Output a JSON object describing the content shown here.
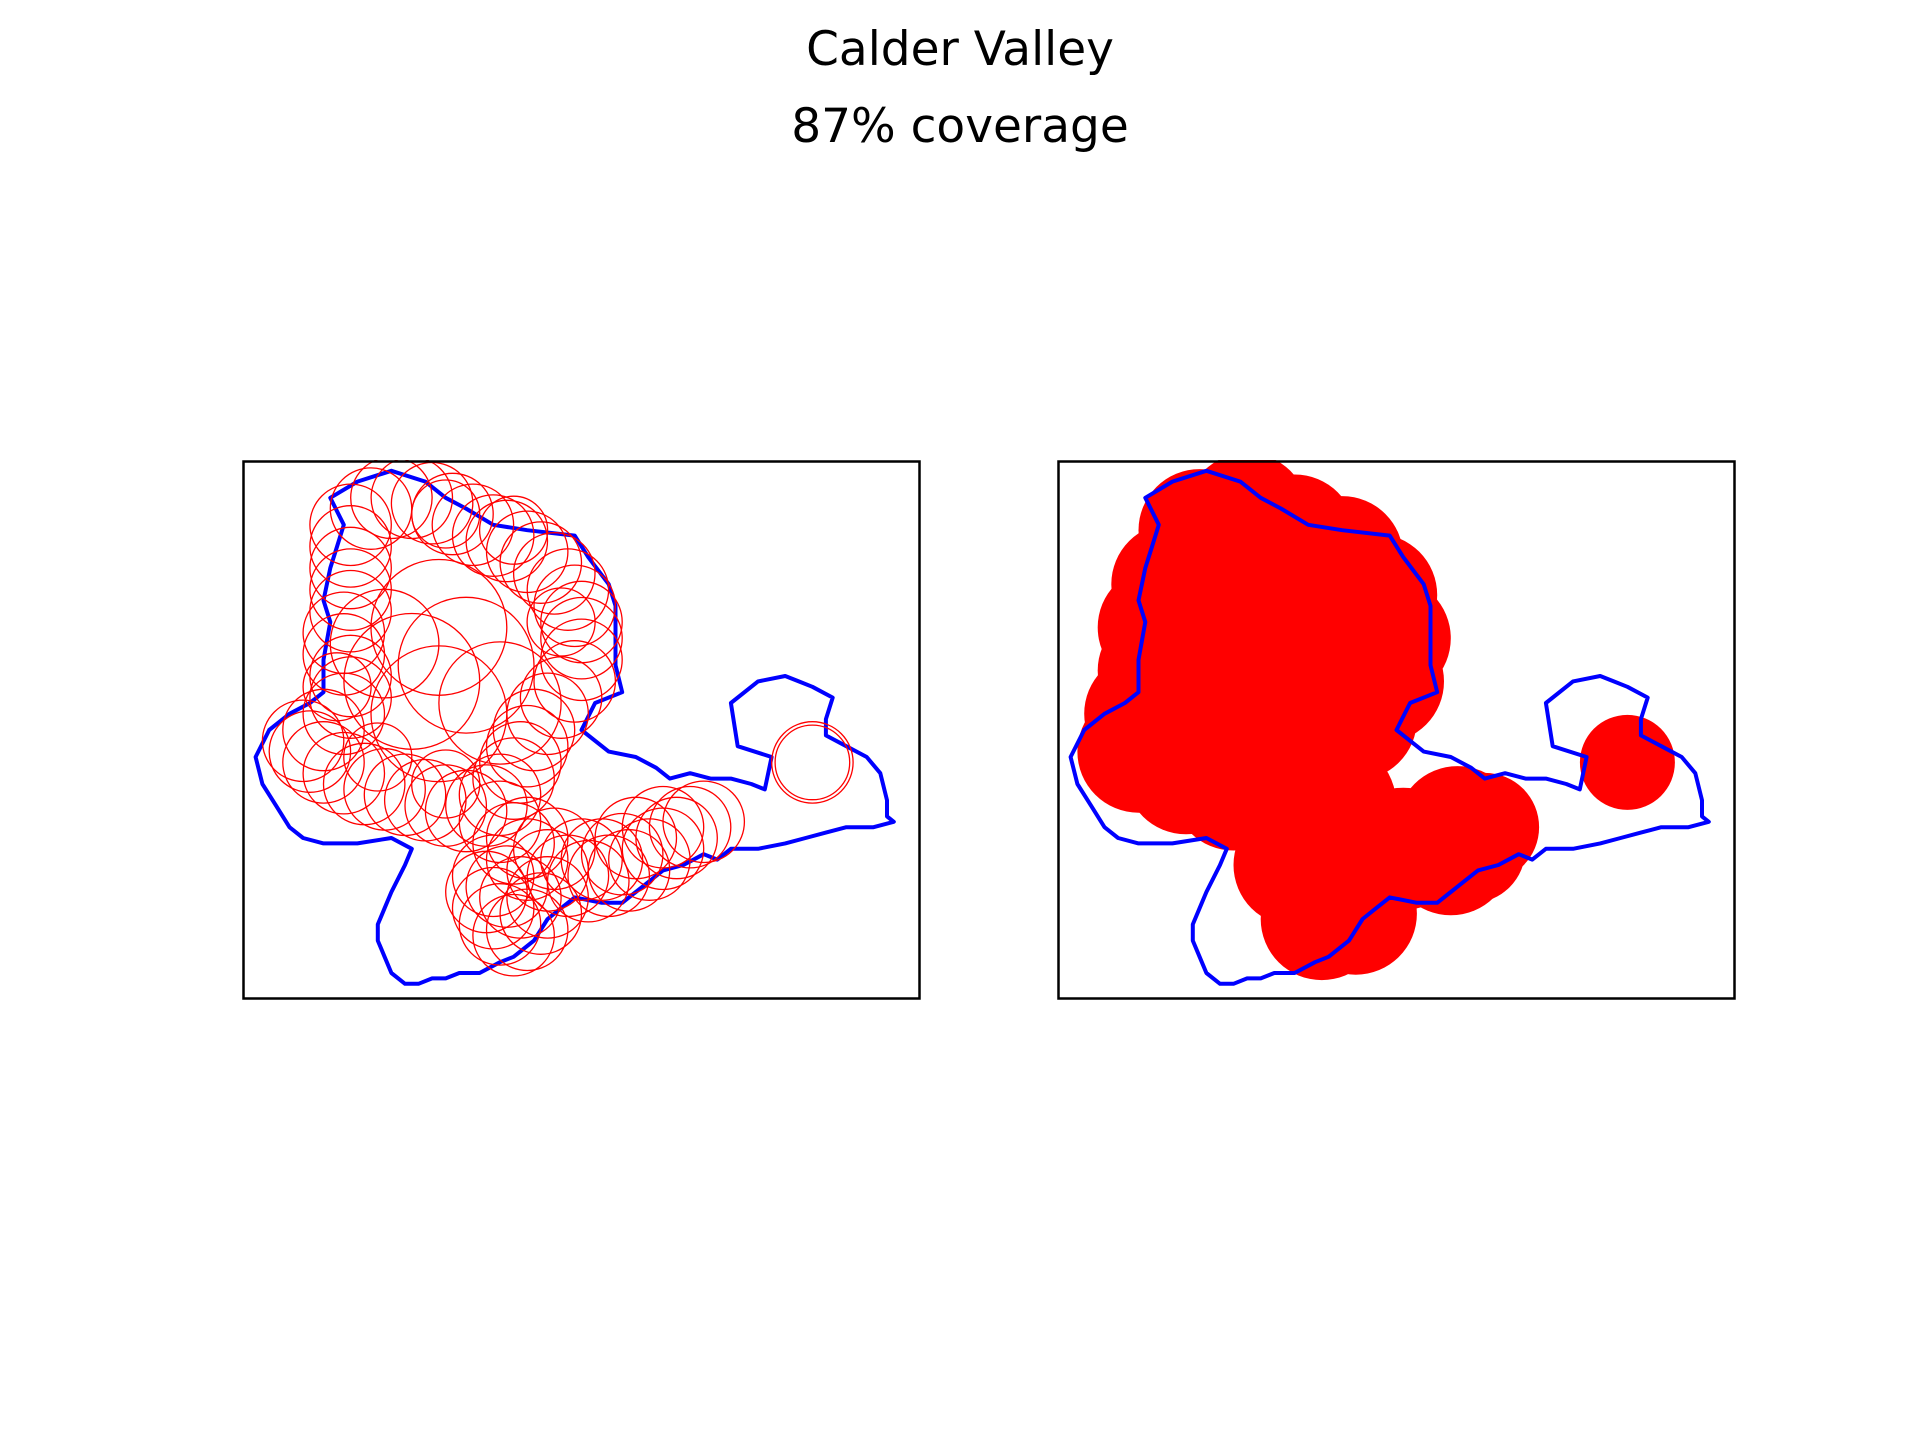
{
  "title": "Calder Valley",
  "subtitle": "87% coverage",
  "colors": {
    "boundary": "#0000ff",
    "circles": "#ff0000",
    "frame": "#000000",
    "background": "#ffffff"
  },
  "chart_data": [
    {
      "type": "scatter",
      "style": "circle outlines",
      "title": "",
      "xlabel": "",
      "ylabel": "",
      "xlim": [
        0,
        100
      ],
      "ylim": [
        0,
        100
      ],
      "grid": false,
      "boundary": [
        [
          13,
          93
        ],
        [
          17,
          96
        ],
        [
          22,
          98
        ],
        [
          27,
          96
        ],
        [
          30,
          93
        ],
        [
          33,
          91
        ],
        [
          37,
          88
        ],
        [
          42,
          87
        ],
        [
          49,
          86
        ],
        [
          51,
          82
        ],
        [
          54,
          77
        ],
        [
          55,
          73
        ],
        [
          55,
          62
        ],
        [
          56,
          57
        ],
        [
          52,
          55
        ],
        [
          50,
          50
        ],
        [
          54,
          46
        ],
        [
          58,
          45
        ],
        [
          61,
          43
        ],
        [
          63,
          41
        ],
        [
          66,
          42
        ],
        [
          69,
          41
        ],
        [
          72,
          41
        ],
        [
          75,
          40
        ],
        [
          77,
          39
        ],
        [
          78,
          45
        ],
        [
          73,
          47
        ],
        [
          72,
          55
        ],
        [
          76,
          59
        ],
        [
          80,
          60
        ],
        [
          82,
          59
        ],
        [
          84,
          58
        ],
        [
          87,
          56
        ],
        [
          86,
          52
        ],
        [
          86,
          49
        ],
        [
          89,
          47
        ],
        [
          92,
          45
        ],
        [
          94,
          42
        ],
        [
          95,
          37
        ],
        [
          95,
          34
        ],
        [
          96,
          33
        ],
        [
          93,
          32
        ],
        [
          89,
          32
        ],
        [
          86,
          31
        ],
        [
          83,
          30
        ],
        [
          80,
          29
        ],
        [
          76,
          28
        ],
        [
          72,
          28
        ],
        [
          70,
          26
        ],
        [
          68,
          27
        ],
        [
          65,
          25
        ],
        [
          62,
          24
        ],
        [
          60,
          22
        ],
        [
          58,
          20
        ],
        [
          56,
          18
        ],
        [
          53,
          18
        ],
        [
          49,
          19
        ],
        [
          47,
          17
        ],
        [
          45,
          15
        ],
        [
          43,
          11
        ],
        [
          40,
          8
        ],
        [
          38,
          7
        ],
        [
          35,
          5
        ],
        [
          32,
          5
        ],
        [
          30,
          4
        ],
        [
          28,
          4
        ],
        [
          26,
          3
        ],
        [
          24,
          3
        ],
        [
          22,
          5
        ],
        [
          21,
          8
        ],
        [
          20,
          11
        ],
        [
          20,
          14
        ],
        [
          21,
          17
        ],
        [
          22,
          20
        ],
        [
          24,
          25
        ],
        [
          25,
          28
        ],
        [
          22,
          30
        ],
        [
          17,
          29
        ],
        [
          12,
          29
        ],
        [
          9,
          30
        ],
        [
          7,
          32
        ],
        [
          5,
          36
        ],
        [
          3,
          40
        ],
        [
          2,
          45
        ],
        [
          4,
          50
        ],
        [
          7,
          53
        ],
        [
          10,
          55
        ],
        [
          12,
          57
        ],
        [
          12,
          63
        ],
        [
          13,
          70
        ],
        [
          12,
          74
        ],
        [
          13,
          80
        ],
        [
          14,
          84
        ],
        [
          15,
          88
        ],
        [
          13,
          93
        ]
      ],
      "circles": [
        [
          16,
          88,
          6
        ],
        [
          19,
          91,
          6
        ],
        [
          22,
          93,
          6
        ],
        [
          25,
          93,
          6
        ],
        [
          28,
          92,
          6
        ],
        [
          31,
          90,
          6
        ],
        [
          34,
          88,
          6
        ],
        [
          37,
          86,
          6
        ],
        [
          39,
          85,
          6
        ],
        [
          42,
          83,
          6
        ],
        [
          44,
          81,
          6
        ],
        [
          46,
          79,
          6
        ],
        [
          48,
          76,
          6
        ],
        [
          49,
          73,
          6
        ],
        [
          50,
          70,
          6
        ],
        [
          50,
          67,
          6
        ],
        [
          50,
          63,
          6
        ],
        [
          49,
          59,
          6
        ],
        [
          47,
          56,
          6
        ],
        [
          45,
          53,
          6
        ],
        [
          43,
          50,
          6
        ],
        [
          42,
          47,
          6
        ],
        [
          41,
          44,
          6
        ],
        [
          40,
          41,
          6
        ],
        [
          38,
          38,
          6
        ],
        [
          36,
          36,
          6
        ],
        [
          33,
          35,
          6
        ],
        [
          30,
          36,
          6
        ],
        [
          27,
          37,
          6
        ],
        [
          24,
          38,
          6
        ],
        [
          21,
          39,
          6
        ],
        [
          18,
          40,
          6
        ],
        [
          15,
          42,
          6
        ],
        [
          12,
          44,
          6
        ],
        [
          10,
          46,
          6
        ],
        [
          9,
          48,
          6
        ],
        [
          12,
          50,
          6
        ],
        [
          15,
          53,
          6
        ],
        [
          16,
          56,
          6
        ],
        [
          16,
          60,
          6
        ],
        [
          15,
          64,
          6
        ],
        [
          15,
          68,
          6
        ],
        [
          16,
          72,
          6
        ],
        [
          16,
          76,
          6
        ],
        [
          16,
          80,
          6
        ],
        [
          16,
          84,
          6
        ],
        [
          30,
          90,
          5
        ],
        [
          40,
          87,
          5
        ],
        [
          47,
          70,
          5
        ],
        [
          30,
          40,
          5
        ],
        [
          20,
          45,
          5
        ],
        [
          14,
          58,
          5
        ],
        [
          38,
          33,
          6
        ],
        [
          40,
          29,
          6
        ],
        [
          42,
          26,
          6
        ],
        [
          45,
          24,
          6
        ],
        [
          48,
          23,
          6
        ],
        [
          51,
          22,
          6
        ],
        [
          54,
          23,
          6
        ],
        [
          57,
          24,
          6
        ],
        [
          60,
          26,
          6
        ],
        [
          62,
          28,
          6
        ],
        [
          64,
          30,
          6
        ],
        [
          66,
          32,
          6
        ],
        [
          68,
          33,
          6
        ],
        [
          62,
          32,
          6
        ],
        [
          58,
          30,
          6
        ],
        [
          56,
          27,
          6
        ],
        [
          53,
          26,
          6
        ],
        [
          50,
          26,
          6
        ],
        [
          46,
          28,
          6
        ],
        [
          42,
          30,
          6
        ],
        [
          37,
          23,
          6
        ],
        [
          36,
          20,
          6
        ],
        [
          37,
          17,
          6
        ],
        [
          38,
          14,
          6
        ],
        [
          40,
          12,
          6
        ],
        [
          42,
          13,
          6
        ],
        [
          44,
          16,
          6
        ],
        [
          45,
          19,
          6
        ],
        [
          41,
          19,
          6
        ],
        [
          39,
          21,
          6
        ],
        [
          29,
          69,
          10
        ],
        [
          33,
          62,
          10
        ],
        [
          29,
          53,
          10
        ],
        [
          25,
          59,
          10
        ],
        [
          38,
          55,
          9
        ],
        [
          21,
          66,
          8
        ],
        [
          84,
          44,
          6
        ],
        [
          84,
          44,
          5.5
        ]
      ]
    },
    {
      "type": "scatter",
      "style": "filled circles",
      "title": "",
      "xlabel": "",
      "ylabel": "",
      "xlim": [
        0,
        100
      ],
      "ylim": [
        0,
        100
      ],
      "grid": false,
      "boundary": [
        [
          13,
          93
        ],
        [
          17,
          96
        ],
        [
          22,
          98
        ],
        [
          27,
          96
        ],
        [
          30,
          93
        ],
        [
          33,
          91
        ],
        [
          37,
          88
        ],
        [
          42,
          87
        ],
        [
          49,
          86
        ],
        [
          51,
          82
        ],
        [
          54,
          77
        ],
        [
          55,
          73
        ],
        [
          55,
          62
        ],
        [
          56,
          57
        ],
        [
          52,
          55
        ],
        [
          50,
          50
        ],
        [
          54,
          46
        ],
        [
          58,
          45
        ],
        [
          61,
          43
        ],
        [
          63,
          41
        ],
        [
          66,
          42
        ],
        [
          69,
          41
        ],
        [
          72,
          41
        ],
        [
          75,
          40
        ],
        [
          77,
          39
        ],
        [
          78,
          45
        ],
        [
          73,
          47
        ],
        [
          72,
          55
        ],
        [
          76,
          59
        ],
        [
          80,
          60
        ],
        [
          82,
          59
        ],
        [
          84,
          58
        ],
        [
          87,
          56
        ],
        [
          86,
          52
        ],
        [
          86,
          49
        ],
        [
          89,
          47
        ],
        [
          92,
          45
        ],
        [
          94,
          42
        ],
        [
          95,
          37
        ],
        [
          95,
          34
        ],
        [
          96,
          33
        ],
        [
          93,
          32
        ],
        [
          89,
          32
        ],
        [
          86,
          31
        ],
        [
          83,
          30
        ],
        [
          80,
          29
        ],
        [
          76,
          28
        ],
        [
          72,
          28
        ],
        [
          70,
          26
        ],
        [
          68,
          27
        ],
        [
          65,
          25
        ],
        [
          62,
          24
        ],
        [
          60,
          22
        ],
        [
          58,
          20
        ],
        [
          56,
          18
        ],
        [
          53,
          18
        ],
        [
          49,
          19
        ],
        [
          47,
          17
        ],
        [
          45,
          15
        ],
        [
          43,
          11
        ],
        [
          40,
          8
        ],
        [
          38,
          7
        ],
        [
          35,
          5
        ],
        [
          32,
          5
        ],
        [
          30,
          4
        ],
        [
          28,
          4
        ],
        [
          26,
          3
        ],
        [
          24,
          3
        ],
        [
          22,
          5
        ],
        [
          21,
          8
        ],
        [
          20,
          11
        ],
        [
          20,
          14
        ],
        [
          21,
          17
        ],
        [
          22,
          20
        ],
        [
          24,
          25
        ],
        [
          25,
          28
        ],
        [
          22,
          30
        ],
        [
          17,
          29
        ],
        [
          12,
          29
        ],
        [
          9,
          30
        ],
        [
          7,
          32
        ],
        [
          5,
          36
        ],
        [
          3,
          40
        ],
        [
          2,
          45
        ],
        [
          4,
          50
        ],
        [
          7,
          53
        ],
        [
          10,
          55
        ],
        [
          12,
          57
        ],
        [
          12,
          63
        ],
        [
          13,
          70
        ],
        [
          12,
          74
        ],
        [
          13,
          80
        ],
        [
          14,
          84
        ],
        [
          15,
          88
        ],
        [
          13,
          93
        ]
      ],
      "circles": [
        [
          21,
          87,
          9
        ],
        [
          28,
          90,
          9
        ],
        [
          35,
          86,
          9
        ],
        [
          42,
          82,
          9
        ],
        [
          47,
          75,
          9
        ],
        [
          49,
          67,
          9
        ],
        [
          48,
          59,
          9
        ],
        [
          44,
          52,
          9
        ],
        [
          39,
          45,
          9
        ],
        [
          33,
          39,
          9
        ],
        [
          26,
          39,
          9
        ],
        [
          19,
          42,
          9
        ],
        [
          12,
          46,
          9
        ],
        [
          13,
          53,
          9
        ],
        [
          15,
          61,
          9
        ],
        [
          15,
          69,
          9
        ],
        [
          17,
          77,
          9
        ],
        [
          25,
          80,
          9
        ],
        [
          33,
          78,
          9
        ],
        [
          40,
          74,
          9
        ],
        [
          30,
          66,
          10
        ],
        [
          36,
          60,
          10
        ],
        [
          28,
          55,
          10
        ],
        [
          22,
          62,
          10
        ],
        [
          40,
          36,
          10
        ],
        [
          35,
          25,
          9
        ],
        [
          44,
          16,
          9
        ],
        [
          39,
          15,
          9
        ],
        [
          40,
          23,
          9
        ],
        [
          51,
          28,
          9
        ],
        [
          58,
          27,
          9
        ],
        [
          59,
          32,
          9
        ],
        [
          63,
          32,
          8
        ],
        [
          61,
          28,
          8
        ],
        [
          84,
          44,
          7
        ]
      ]
    }
  ]
}
